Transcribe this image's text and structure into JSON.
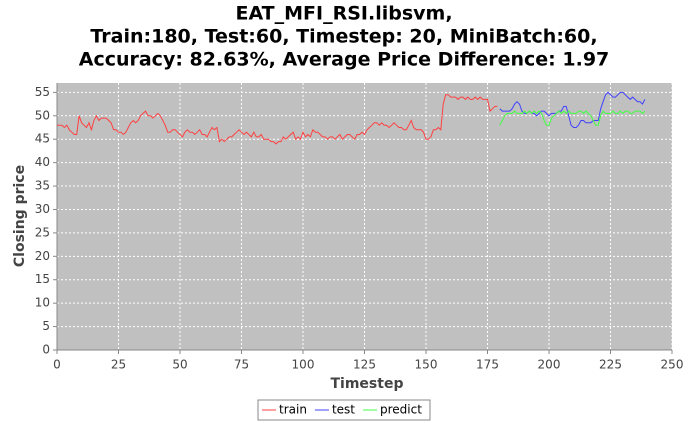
{
  "chart_data": {
    "type": "line",
    "title": [
      "EAT_MFI_RSI.libsvm,",
      "Train:180, Test:60, Timestep: 20, MiniBatch:60,",
      "Accuracy: 82.63%, Average Price Difference: 1.97"
    ],
    "x_label": "Timestep",
    "y_label": "Closing price",
    "xlim": [
      0,
      250
    ],
    "xticks": [
      0,
      25,
      50,
      75,
      100,
      125,
      150,
      175,
      200,
      225,
      250
    ],
    "ylim": [
      0,
      57
    ],
    "yticks": [
      0,
      5,
      10,
      15,
      20,
      25,
      30,
      35,
      40,
      45,
      50,
      55
    ],
    "grid": true,
    "legend": "bottom",
    "series": [
      {
        "name": "train",
        "color": "#ff4040",
        "x": [
          0,
          1,
          2,
          3,
          4,
          5,
          6,
          7,
          8,
          9,
          10,
          11,
          12,
          13,
          14,
          15,
          16,
          17,
          18,
          19,
          20,
          21,
          22,
          23,
          24,
          25,
          26,
          27,
          28,
          29,
          30,
          31,
          32,
          33,
          34,
          35,
          36,
          37,
          38,
          39,
          40,
          41,
          42,
          43,
          44,
          45,
          46,
          47,
          48,
          49,
          50,
          51,
          52,
          53,
          54,
          55,
          56,
          57,
          58,
          59,
          60,
          61,
          62,
          63,
          64,
          65,
          66,
          67,
          68,
          69,
          70,
          71,
          72,
          73,
          74,
          75,
          76,
          77,
          78,
          79,
          80,
          81,
          82,
          83,
          84,
          85,
          86,
          87,
          88,
          89,
          90,
          91,
          92,
          93,
          94,
          95,
          96,
          97,
          98,
          99,
          100,
          101,
          102,
          103,
          104,
          105,
          106,
          107,
          108,
          109,
          110,
          111,
          112,
          113,
          114,
          115,
          116,
          117,
          118,
          119,
          120,
          121,
          122,
          123,
          124,
          125,
          126,
          127,
          128,
          129,
          130,
          131,
          132,
          133,
          134,
          135,
          136,
          137,
          138,
          139,
          140,
          141,
          142,
          143,
          144,
          145,
          146,
          147,
          148,
          149,
          150,
          151,
          152,
          153,
          154,
          155,
          156,
          157,
          158,
          159,
          160,
          161,
          162,
          163,
          164,
          165,
          166,
          167,
          168,
          169,
          170,
          171,
          172,
          173,
          174,
          175,
          176,
          177,
          178,
          179
        ],
        "values": [
          48,
          48,
          48,
          47.5,
          48,
          47,
          46.5,
          46,
          46,
          50,
          48.5,
          48,
          47.5,
          48.5,
          47,
          49,
          50,
          49,
          49.5,
          49.5,
          49.5,
          49,
          48.5,
          47,
          47,
          46.5,
          46.5,
          46,
          46.5,
          47.5,
          48.5,
          49,
          48.5,
          49,
          50,
          50.5,
          51,
          50,
          50,
          49.5,
          50,
          50.5,
          50,
          49,
          48,
          46.5,
          46.5,
          47,
          47,
          46.5,
          46,
          45.5,
          46.5,
          47,
          46.5,
          46.5,
          46,
          46.5,
          47,
          46,
          46,
          45.5,
          46.5,
          47.5,
          47,
          47.5,
          44.5,
          45,
          44.5,
          45,
          45.5,
          45.5,
          46,
          46.5,
          47,
          46.5,
          46,
          46.5,
          46,
          45.5,
          46.5,
          45.5,
          45.5,
          46,
          45,
          45,
          45,
          44.5,
          44.5,
          44,
          44.5,
          44.5,
          45.5,
          45,
          45.5,
          46,
          46.5,
          45,
          45.5,
          45,
          46.5,
          45.5,
          46,
          45.5,
          47,
          46.5,
          46.5,
          46,
          45.5,
          45.5,
          45,
          45.5,
          45.5,
          45,
          45.5,
          46,
          45,
          45.5,
          46,
          46,
          45.5,
          45,
          46,
          46,
          46.5,
          46,
          47,
          47.5,
          48,
          48.5,
          48.5,
          48,
          48.5,
          48,
          48,
          47.5,
          48,
          48.5,
          48,
          47.5,
          47.5,
          47,
          47,
          48,
          49,
          47.5,
          47,
          47,
          47,
          46.5,
          45,
          45,
          45.5,
          47,
          47,
          47.5,
          47,
          52.5,
          54.5,
          54.5,
          54,
          54,
          54,
          53.5,
          54,
          54,
          53.5,
          54,
          53.5,
          53.5,
          54,
          53.5,
          54,
          53.5,
          53.5,
          53.5,
          51,
          51.5,
          52,
          52
        ]
      },
      {
        "name": "test",
        "color": "#4040ff",
        "x": [
          180,
          181,
          182,
          183,
          184,
          185,
          186,
          187,
          188,
          189,
          190,
          191,
          192,
          193,
          194,
          195,
          196,
          197,
          198,
          199,
          200,
          201,
          202,
          203,
          204,
          205,
          206,
          207,
          208,
          209,
          210,
          211,
          212,
          213,
          214,
          215,
          216,
          217,
          218,
          219,
          220,
          221,
          222,
          223,
          224,
          225,
          226,
          227,
          228,
          229,
          230,
          231,
          232,
          233,
          234,
          235,
          236,
          237,
          238,
          239
        ],
        "values": [
          51.5,
          51,
          51,
          51,
          51,
          51.5,
          52.5,
          53,
          52.5,
          51,
          50.5,
          50.5,
          51,
          50.5,
          50.5,
          50,
          50.5,
          51,
          51,
          50.5,
          50,
          50.5,
          50.5,
          50.5,
          51,
          51,
          52,
          52,
          50,
          48,
          47.5,
          47.5,
          48,
          49,
          49,
          48.5,
          48.5,
          48.5,
          49,
          49,
          49,
          51.5,
          53,
          54.5,
          55,
          54.5,
          54,
          54,
          54.5,
          55,
          55,
          54.5,
          54,
          53.5,
          54,
          53.5,
          53,
          53,
          52.5,
          53.5
        ]
      },
      {
        "name": "predict",
        "color": "#40ff40",
        "x": [
          180,
          181,
          182,
          183,
          184,
          185,
          186,
          187,
          188,
          189,
          190,
          191,
          192,
          193,
          194,
          195,
          196,
          197,
          198,
          199,
          200,
          201,
          202,
          203,
          204,
          205,
          206,
          207,
          208,
          209,
          210,
          211,
          212,
          213,
          214,
          215,
          216,
          217,
          218,
          219,
          220,
          221,
          222,
          223,
          224,
          225,
          226,
          227,
          228,
          229,
          230,
          231,
          232,
          233,
          234,
          235,
          236,
          237,
          238,
          239
        ],
        "values": [
          48,
          49,
          50,
          50.5,
          50.5,
          50.5,
          51,
          50.5,
          50.5,
          50.5,
          51,
          50.5,
          51,
          50.5,
          51,
          50.5,
          51,
          50.5,
          49,
          48,
          48,
          49.5,
          50,
          50.5,
          51,
          50.5,
          51,
          50.5,
          51,
          50.5,
          50.5,
          50.5,
          51,
          51,
          50.5,
          51,
          50.5,
          50,
          49,
          48,
          48,
          50,
          51,
          50.5,
          50.5,
          50.5,
          51,
          50.5,
          50.5,
          51,
          50.5,
          51,
          51,
          50.5,
          50.5,
          51,
          51,
          51,
          50.5,
          51
        ]
      }
    ]
  }
}
